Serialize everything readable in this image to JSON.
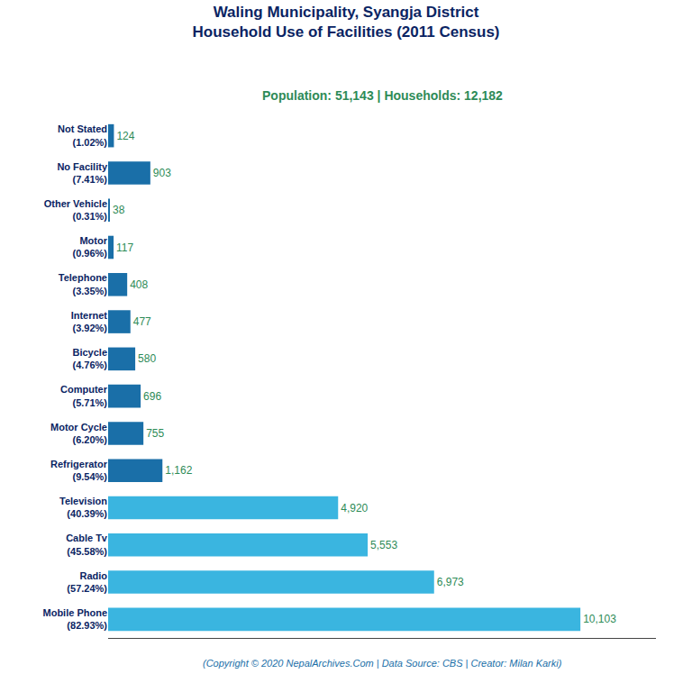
{
  "chart_data": {
    "type": "bar",
    "orientation": "horizontal",
    "title": "Waling Municipality, Syangja District\nHousehold Use of Facilities (2011 Census)",
    "subtitle": "Population: 51,143 | Households: 12,182",
    "annotations": [
      "(Copyright © 2020 NepalArchives.Com | Data Source: CBS | Creator: Milan Karki)"
    ],
    "categories": [
      "Not Stated\n(1.02%)",
      "No Facility\n(7.41%)",
      "Other Vehicle\n(0.31%)",
      "Motor\n(0.96%)",
      "Telephone\n(3.35%)",
      "Internet\n(3.92%)",
      "Bicycle\n(4.76%)",
      "Computer\n(5.71%)",
      "Motor Cycle\n(6.20%)",
      "Refrigerator\n(9.54%)",
      "Television\n(40.39%)",
      "Cable Tv\n(45.58%)",
      "Radio\n(57.24%)",
      "Mobile Phone\n(82.93%)"
    ],
    "values": [
      124,
      903,
      38,
      117,
      408,
      477,
      580,
      696,
      755,
      1162,
      4920,
      5553,
      6973,
      10103
    ],
    "value_labels": [
      "124",
      "903",
      "38",
      "117",
      "408",
      "477",
      "580",
      "696",
      "755",
      "1,162",
      "4,920",
      "5,553",
      "6,973",
      "10,103"
    ],
    "data_labels": true,
    "colors": [
      "#1a6fa8",
      "#1a6fa8",
      "#1a6fa8",
      "#1a6fa8",
      "#1a6fa8",
      "#1a6fa8",
      "#1a6fa8",
      "#1a6fa8",
      "#1a6fa8",
      "#1a6fa8",
      "#3ab5e0",
      "#3ab5e0",
      "#3ab5e0",
      "#3ab5e0"
    ],
    "xlim": [
      0,
      11719.48
    ],
    "tick_labels": "y",
    "grid": false
  }
}
